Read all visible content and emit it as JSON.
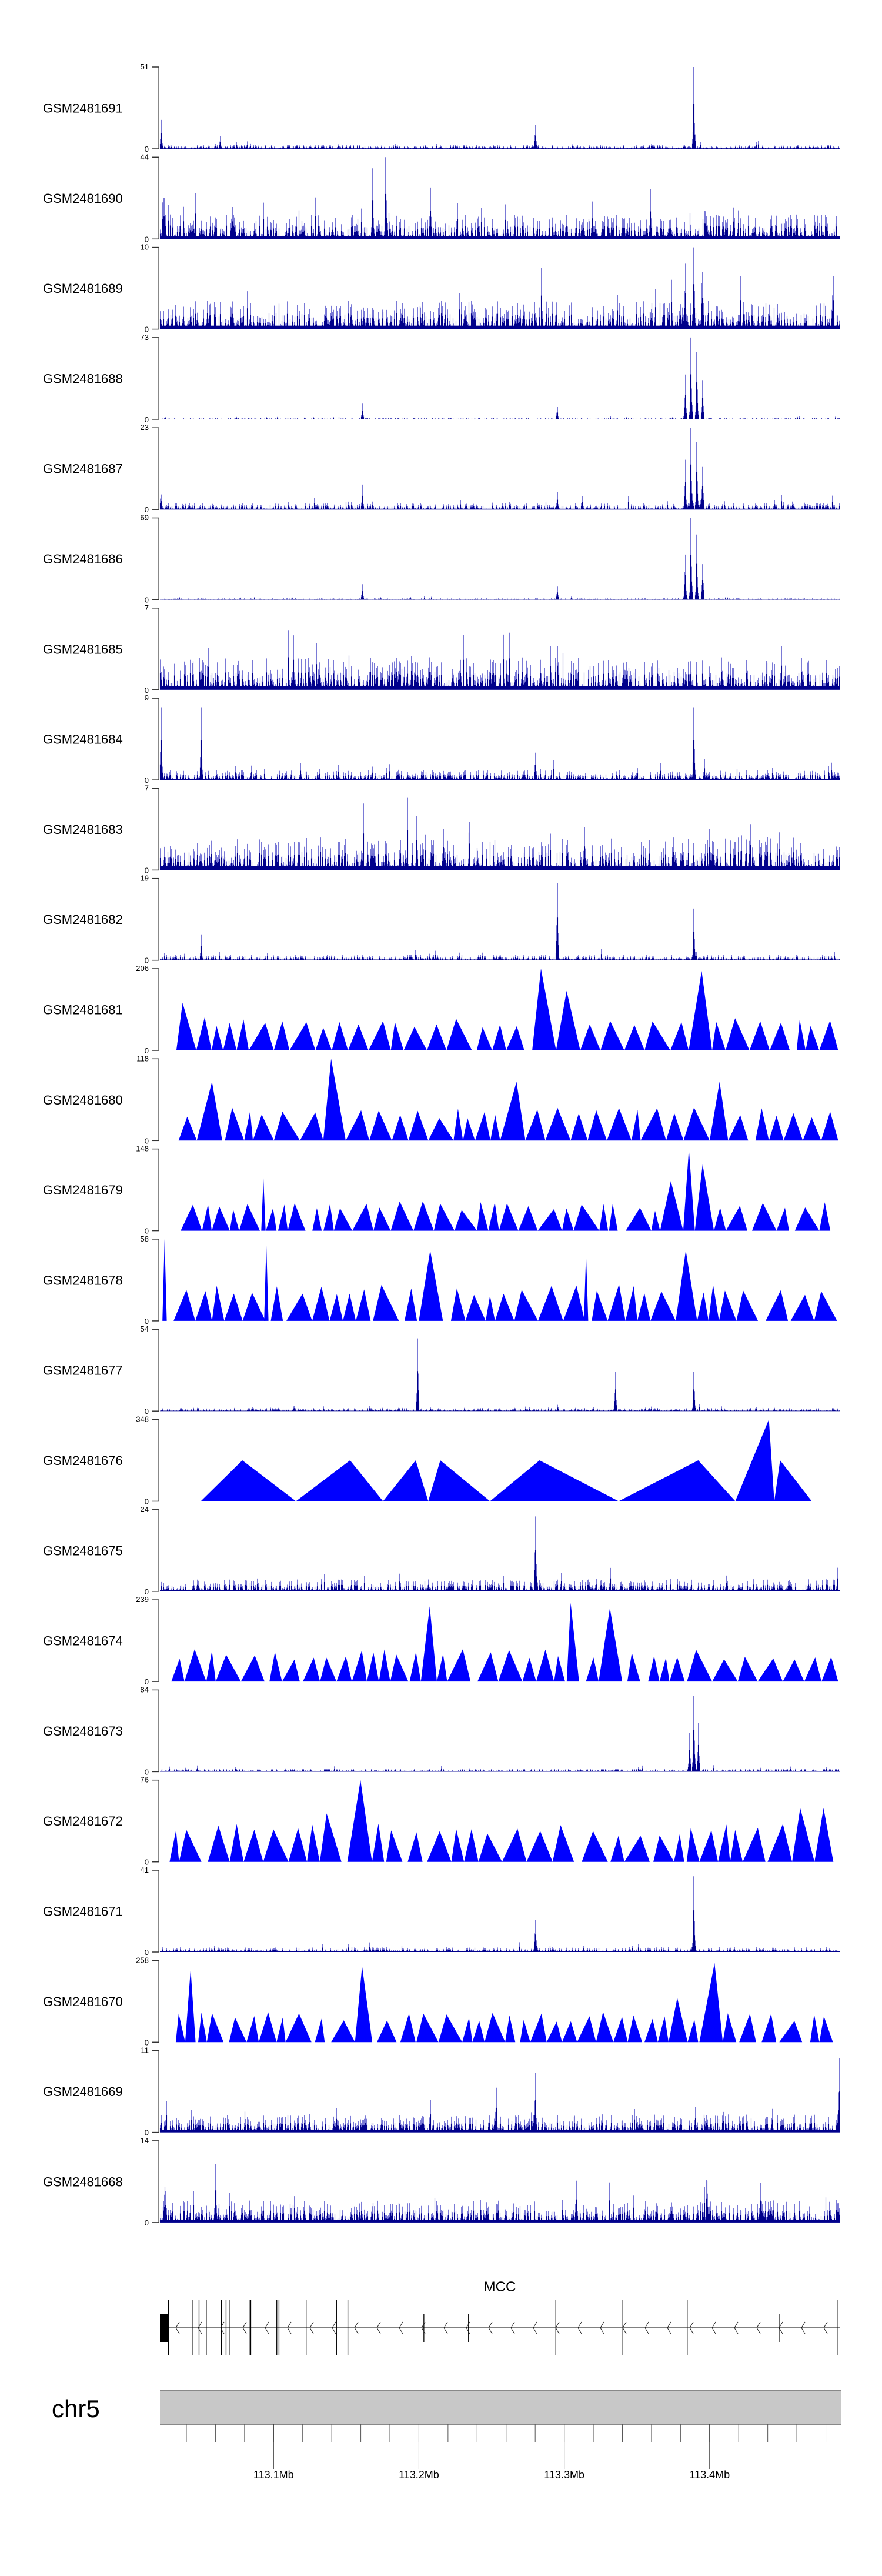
{
  "chart_data": {
    "type": "area",
    "title": "",
    "xlabel": "",
    "xlim_mb": [
      113.0218,
      113.4895
    ],
    "colors": {
      "signal_dark": "#00008b",
      "signal_light": "#7a7ad6",
      "triangle": "#0000ff",
      "axis": "#888888",
      "band": "#c8c8c8"
    },
    "tracks": [
      {
        "name": "GSM2481691",
        "ymax": 51,
        "style": "bars",
        "background": 0.05,
        "peaks": [
          [
            113.389,
            51
          ],
          [
            113.28,
            15
          ],
          [
            113.063,
            8
          ],
          [
            113.0225,
            18
          ]
        ]
      },
      {
        "name": "GSM2481690",
        "ymax": 44,
        "style": "bars",
        "background": 0.3,
        "peaks": [
          [
            113.177,
            44
          ],
          [
            113.168,
            38
          ],
          [
            113.0245,
            22
          ]
        ]
      },
      {
        "name": "GSM2481689",
        "ymax": 10,
        "style": "bars",
        "background": 0.35,
        "peaks": [
          [
            113.389,
            10
          ],
          [
            113.383,
            8
          ],
          [
            113.395,
            7
          ]
        ]
      },
      {
        "name": "GSM2481688",
        "ymax": 73,
        "style": "bars",
        "background": 0.02,
        "peaks": [
          [
            113.387,
            73
          ],
          [
            113.391,
            60
          ],
          [
            113.383,
            40
          ],
          [
            113.395,
            35
          ],
          [
            113.161,
            14
          ],
          [
            113.295,
            11
          ]
        ]
      },
      {
        "name": "GSM2481687",
        "ymax": 23,
        "style": "bars",
        "background": 0.08,
        "peaks": [
          [
            113.387,
            23
          ],
          [
            113.391,
            19
          ],
          [
            113.383,
            14
          ],
          [
            113.395,
            12
          ],
          [
            113.161,
            7
          ],
          [
            113.295,
            5
          ]
        ]
      },
      {
        "name": "GSM2481686",
        "ymax": 69,
        "style": "bars",
        "background": 0.02,
        "peaks": [
          [
            113.387,
            69
          ],
          [
            113.391,
            55
          ],
          [
            113.383,
            38
          ],
          [
            113.395,
            30
          ],
          [
            113.161,
            13
          ],
          [
            113.295,
            11
          ]
        ]
      },
      {
        "name": "GSM2481685",
        "ymax": 7,
        "style": "bars",
        "background": 0.4,
        "peaks": []
      },
      {
        "name": "GSM2481684",
        "ymax": 9,
        "style": "bars",
        "background": 0.12,
        "peaks": [
          [
            113.05,
            8
          ],
          [
            113.389,
            8
          ],
          [
            113.28,
            3
          ],
          [
            113.0225,
            8
          ]
        ]
      },
      {
        "name": "GSM2481683",
        "ymax": 7,
        "style": "bars",
        "background": 0.4,
        "peaks": []
      },
      {
        "name": "GSM2481682",
        "ymax": 19,
        "style": "bars",
        "background": 0.07,
        "peaks": [
          [
            113.295,
            18
          ],
          [
            113.389,
            12
          ],
          [
            113.05,
            6
          ]
        ]
      },
      {
        "name": "GSM2481681",
        "ymax": 206,
        "style": "triangles",
        "typical": 70,
        "tall": [
          [
            113.28,
            206
          ],
          [
            113.295,
            150
          ],
          [
            113.389,
            200
          ],
          [
            113.045,
            120
          ]
        ]
      },
      {
        "name": "GSM2481680",
        "ymax": 118,
        "style": "triangles",
        "typical": 40,
        "tall": [
          [
            113.052,
            85
          ],
          [
            113.136,
            118
          ],
          [
            113.266,
            85
          ],
          [
            113.402,
            85
          ],
          [
            113.059,
            55
          ]
        ]
      },
      {
        "name": "GSM2481679",
        "ymax": 148,
        "style": "triangles",
        "typical": 45,
        "tall": [
          [
            113.093,
            95
          ],
          [
            113.386,
            148
          ],
          [
            113.391,
            120
          ],
          [
            113.376,
            90
          ]
        ]
      },
      {
        "name": "GSM2481678",
        "ymax": 58,
        "style": "triangles",
        "typical": 22,
        "tall": [
          [
            113.025,
            58
          ],
          [
            113.095,
            55
          ],
          [
            113.2,
            50
          ],
          [
            113.315,
            48
          ],
          [
            113.39,
            50
          ]
        ]
      },
      {
        "name": "GSM2481677",
        "ymax": 54,
        "style": "bars",
        "background": 0.04,
        "peaks": [
          [
            113.199,
            48
          ],
          [
            113.335,
            26
          ],
          [
            113.389,
            26
          ]
        ]
      },
      {
        "name": "GSM2481676",
        "ymax": 348,
        "style": "triangles",
        "fixed": [
          [
            113.0499,
            113.0785,
            113.1154,
            174
          ],
          [
            113.1154,
            113.1526,
            113.1753,
            174
          ],
          [
            113.1753,
            113.1978,
            113.2064,
            174
          ],
          [
            113.2064,
            113.2147,
            113.2489,
            174
          ],
          [
            113.2489,
            113.283,
            113.3374,
            174
          ],
          [
            113.3374,
            113.3922,
            113.4177,
            174
          ],
          [
            113.4177,
            113.4408,
            113.4445,
            348
          ],
          [
            113.4445,
            113.4485,
            113.4703,
            174
          ]
        ]
      },
      {
        "name": "GSM2481675",
        "ymax": 24,
        "style": "bars",
        "background": 0.15,
        "peaks": [
          [
            113.28,
            22
          ]
        ]
      },
      {
        "name": "GSM2481674",
        "ymax": 239,
        "style": "triangles",
        "typical": 80,
        "tall": [
          [
            113.205,
            220
          ],
          [
            113.302,
            230
          ],
          [
            113.337,
            215
          ]
        ]
      },
      {
        "name": "GSM2481673",
        "ymax": 84,
        "style": "bars",
        "background": 0.04,
        "peaks": [
          [
            113.389,
            78
          ],
          [
            113.392,
            50
          ],
          [
            113.386,
            40
          ]
        ]
      },
      {
        "name": "GSM2481672",
        "ymax": 76,
        "style": "triangles",
        "typical": 30,
        "tall": [
          [
            113.165,
            76
          ],
          [
            113.132,
            45
          ],
          [
            113.47,
            50
          ],
          [
            113.485,
            50
          ]
        ]
      },
      {
        "name": "GSM2481671",
        "ymax": 41,
        "style": "bars",
        "background": 0.06,
        "peaks": [
          [
            113.389,
            38
          ],
          [
            113.28,
            16
          ]
        ]
      },
      {
        "name": "GSM2481670",
        "ymax": 258,
        "style": "triangles",
        "typical": 80,
        "tall": [
          [
            113.042,
            230
          ],
          [
            113.159,
            240
          ],
          [
            113.397,
            250
          ],
          [
            113.372,
            140
          ]
        ]
      },
      {
        "name": "GSM2481669",
        "ymax": 11,
        "style": "bars",
        "background": 0.22,
        "peaks": [
          [
            113.253,
            6
          ],
          [
            113.28,
            8
          ],
          [
            113.489,
            10
          ]
        ]
      },
      {
        "name": "GSM2481668",
        "ymax": 14,
        "style": "bars",
        "background": 0.28,
        "peaks": [
          [
            113.398,
            13
          ],
          [
            113.025,
            11
          ],
          [
            113.06,
            10
          ]
        ]
      }
    ],
    "y_zero_label": "0",
    "gene": {
      "name": "MCC",
      "strand": "-",
      "utr_start": [
        113.0218,
        113.0277
      ],
      "exons_tall": [
        113.0277,
        113.044,
        113.0487,
        113.0537,
        113.0641,
        113.0673,
        113.07,
        113.0832,
        113.0843,
        113.1022,
        113.1037,
        113.1224,
        113.1433,
        113.1511,
        113.2942,
        113.3403,
        113.3846,
        113.4878
      ],
      "exons_short": [
        113.2034,
        113.2341,
        113.4478
      ]
    },
    "ideogram": {
      "chromosome": "chr5",
      "major_ticks": [
        113.1,
        113.2,
        113.3,
        113.4
      ],
      "major_labels": [
        "113.1Mb",
        "113.2Mb",
        "113.3Mb",
        "113.4Mb"
      ],
      "minor_tick_step_mb": 0.02
    }
  }
}
